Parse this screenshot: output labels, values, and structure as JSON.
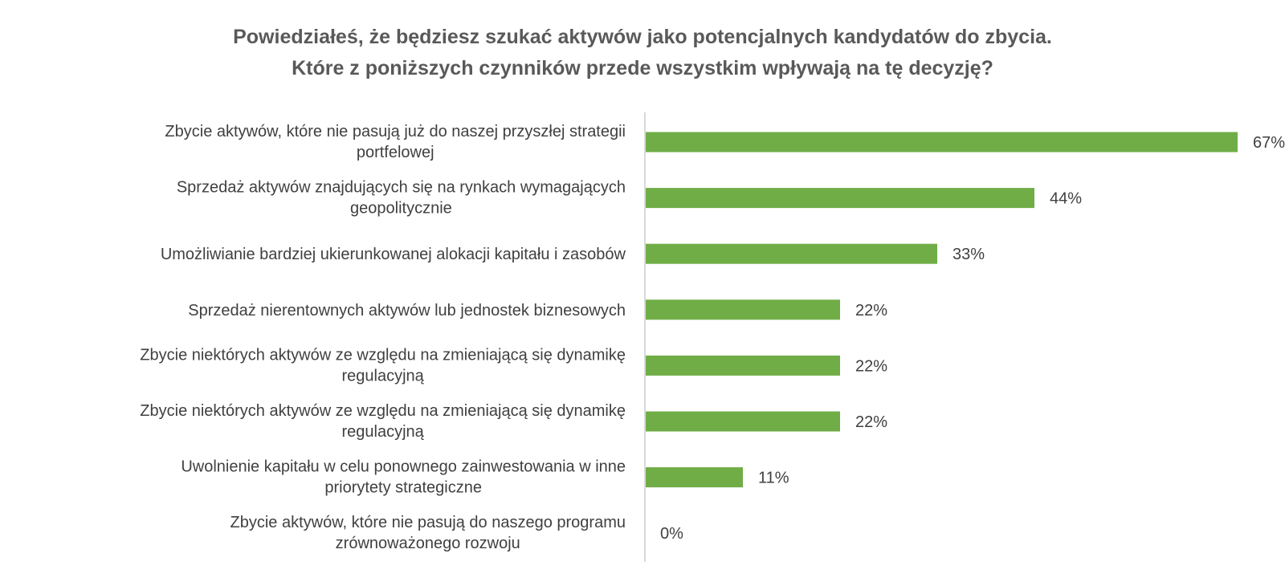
{
  "chart_data": {
    "type": "bar",
    "orientation": "horizontal",
    "title": [
      "Powiedziałeś, że będziesz szukać aktywów jako potencjalnych kandydatów do zbycia.",
      "Które z poniższych czynników przede wszystkim wpływają na tę decyzję?"
    ],
    "categories": [
      [
        "Zbycie aktywów, które nie pasują już do naszej przyszłej strategii",
        "portfelowej"
      ],
      [
        "Sprzedaż aktywów znajdujących się na rynkach wymagających",
        "geopolitycznie"
      ],
      [
        "Umożliwianie bardziej ukierunkowanej alokacji kapitału i zasobów"
      ],
      [
        "Sprzedaż nierentownych aktywów lub jednostek biznesowych"
      ],
      [
        "Zbycie niektórych aktywów ze względu na zmieniającą się dynamikę",
        "regulacyjną"
      ],
      [
        "Zbycie niektórych aktywów ze względu na zmieniającą się dynamikę",
        "regulacyjną"
      ],
      [
        "Uwolnienie kapitału w celu ponownego zainwestowania w inne",
        "priorytety strategiczne"
      ],
      [
        "Zbycie aktywów, które nie pasują do naszego programu",
        "zrównoważonego rozwoju"
      ]
    ],
    "values": [
      67,
      44,
      33,
      22,
      22,
      22,
      11,
      0
    ],
    "value_labels": [
      "67%",
      "44%",
      "33%",
      "22%",
      "22%",
      "22%",
      "11%",
      "0%"
    ],
    "unit": "%",
    "xlim": [
      0,
      70
    ],
    "grid": false,
    "legend": "none",
    "bar_color": "#70ad47",
    "axis_color": "#d9d9d9"
  }
}
